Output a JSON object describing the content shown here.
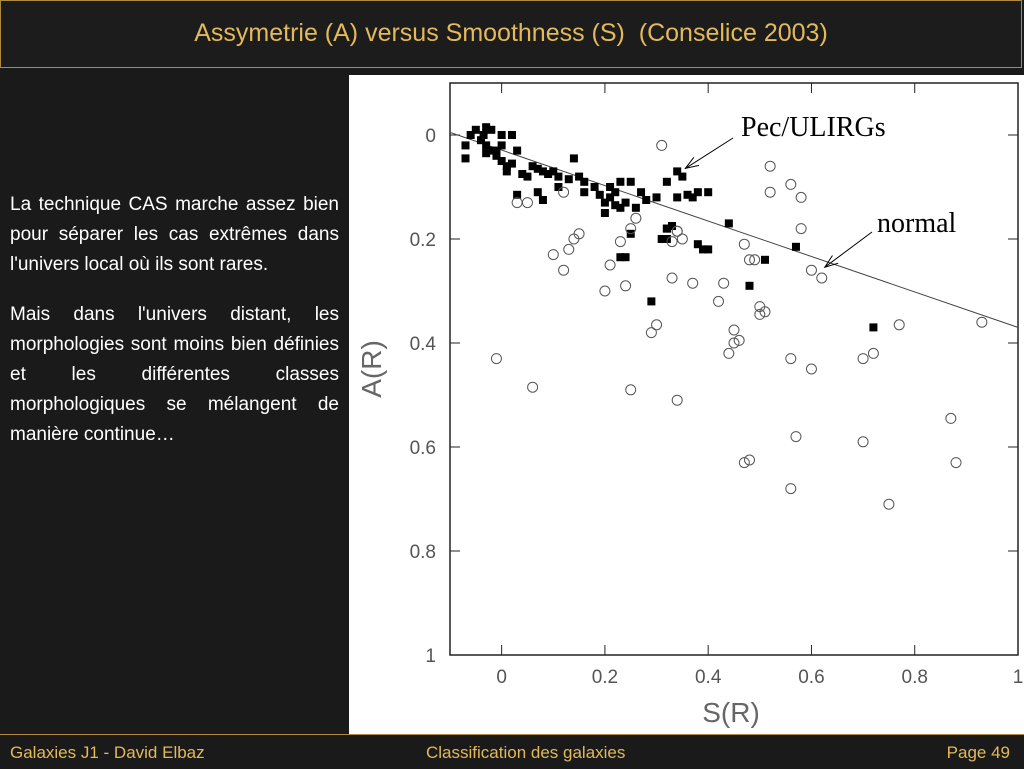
{
  "slide": {
    "title": "Assymetrie (A) versus Smoothness (S)  (Conselice 2003)",
    "paragraphs": [
      "La technique CAS marche assez bien pour séparer les cas extrêmes dans l'univers local où ils sont rares.",
      "Mais dans l'univers distant, les morphologies sont moins bien définies et les différentes classes morphologiques se mélangent de manière continue…"
    ],
    "footer": {
      "left": "Galaxies J1 - David Elbaz",
      "center": "Classification des galaxies",
      "right": "Page 49"
    }
  },
  "chart_data": {
    "type": "scatter",
    "xlabel": "S(R)",
    "ylabel": "A(R)",
    "xlim": [
      -0.1,
      1.0
    ],
    "ylim": [
      -0.1,
      1.0
    ],
    "y_inverted": true,
    "x_ticks": [
      "0",
      "0.2",
      "0.4",
      "0.6",
      "0.8",
      "1"
    ],
    "x_tick_values": [
      0,
      0.2,
      0.4,
      0.6,
      0.8,
      1.0
    ],
    "y_ticks": [
      "0",
      "0.2",
      "0.4",
      "0.6",
      "0.8",
      "1"
    ],
    "y_tick_values": [
      0,
      0.2,
      0.4,
      0.6,
      0.8,
      1.0
    ],
    "grid": false,
    "annotations": [
      {
        "text": "Pec/ULIRGs",
        "points_to": [
          0.35,
          0.07
        ]
      },
      {
        "text": "normal",
        "points_to": [
          0.62,
          0.26
        ]
      }
    ],
    "line": {
      "x": [
        -0.1,
        1.0
      ],
      "y": [
        -0.005,
        0.37
      ]
    },
    "series": [
      {
        "name": "Pec/ULIRGs",
        "marker": "filled-square",
        "x": [
          -0.07,
          -0.06,
          -0.07,
          -0.05,
          -0.04,
          -0.03,
          -0.035,
          -0.03,
          -0.02,
          -0.02,
          -0.01,
          -0.03,
          -0.01,
          0.0,
          0.0,
          0.01,
          0.02,
          0.0,
          0.01,
          0.02,
          0.03,
          0.04,
          0.05,
          0.07,
          0.06,
          0.08,
          0.09,
          0.1,
          0.11,
          0.13,
          0.14,
          0.15,
          0.16,
          0.18,
          0.19,
          0.2,
          0.21,
          0.22,
          0.23,
          0.24,
          0.25,
          0.2,
          0.23,
          0.26,
          0.27,
          0.28,
          0.3,
          0.32,
          0.34,
          0.35,
          0.36,
          0.37,
          0.38,
          0.4,
          0.23,
          0.24,
          0.25,
          0.32,
          0.32,
          0.38,
          0.39,
          0.4,
          0.03,
          0.07,
          0.08,
          0.11,
          0.16,
          0.21,
          0.22,
          0.29,
          0.31,
          0.32,
          0.33,
          0.34,
          0.44,
          0.48,
          0.51,
          0.57,
          0.72
        ],
        "y": [
          0.02,
          0.0,
          0.045,
          -0.01,
          0.01,
          0.02,
          0.0,
          -0.015,
          -0.01,
          0.03,
          0.04,
          0.035,
          0.03,
          0.05,
          0.02,
          0.06,
          0.0,
          0.0,
          0.07,
          0.055,
          0.03,
          0.075,
          0.08,
          0.065,
          0.06,
          0.07,
          0.075,
          0.07,
          0.08,
          0.085,
          0.045,
          0.08,
          0.09,
          0.1,
          0.115,
          0.13,
          0.12,
          0.135,
          0.14,
          0.13,
          0.09,
          0.15,
          0.09,
          0.14,
          0.11,
          0.125,
          0.12,
          0.09,
          0.12,
          0.08,
          0.115,
          0.12,
          0.11,
          0.11,
          0.235,
          0.235,
          0.19,
          0.18,
          0.2,
          0.21,
          0.22,
          0.22,
          0.115,
          0.11,
          0.125,
          0.1,
          0.11,
          0.1,
          0.11,
          0.32,
          0.2,
          0.18,
          0.175,
          0.07,
          0.17,
          0.29,
          0.24,
          0.215,
          0.37
        ]
      },
      {
        "name": "normal",
        "marker": "open-circle",
        "x": [
          0.31,
          0.52,
          0.56,
          0.58,
          0.52,
          -0.01,
          0.03,
          0.06,
          0.05,
          0.1,
          0.12,
          0.13,
          0.14,
          0.15,
          0.12,
          0.2,
          0.21,
          0.23,
          0.24,
          0.25,
          0.26,
          0.29,
          0.3,
          0.25,
          0.33,
          0.33,
          0.34,
          0.35,
          0.34,
          0.37,
          0.43,
          0.42,
          0.44,
          0.45,
          0.45,
          0.46,
          0.47,
          0.48,
          0.49,
          0.5,
          0.5,
          0.51,
          0.47,
          0.56,
          0.57,
          0.6,
          0.6,
          0.62,
          0.56,
          0.58,
          0.7,
          0.7,
          0.72,
          0.75,
          0.77,
          0.87,
          0.88,
          0.93,
          0.48,
          0.34
        ],
        "y": [
          0.02,
          0.06,
          0.095,
          0.12,
          0.11,
          0.43,
          0.13,
          0.485,
          0.13,
          0.23,
          0.26,
          0.22,
          0.2,
          0.19,
          0.11,
          0.3,
          0.25,
          0.205,
          0.29,
          0.49,
          0.16,
          0.38,
          0.365,
          0.18,
          0.275,
          0.205,
          0.185,
          0.2,
          0.51,
          0.285,
          0.285,
          0.32,
          0.42,
          0.375,
          0.4,
          0.395,
          0.21,
          0.24,
          0.24,
          0.345,
          0.33,
          0.34,
          0.63,
          0.43,
          0.58,
          0.45,
          0.26,
          0.275,
          0.68,
          0.18,
          0.59,
          0.43,
          0.42,
          0.71,
          0.365,
          0.545,
          0.63,
          0.36,
          0.625,
          0.185
        ]
      }
    ]
  }
}
